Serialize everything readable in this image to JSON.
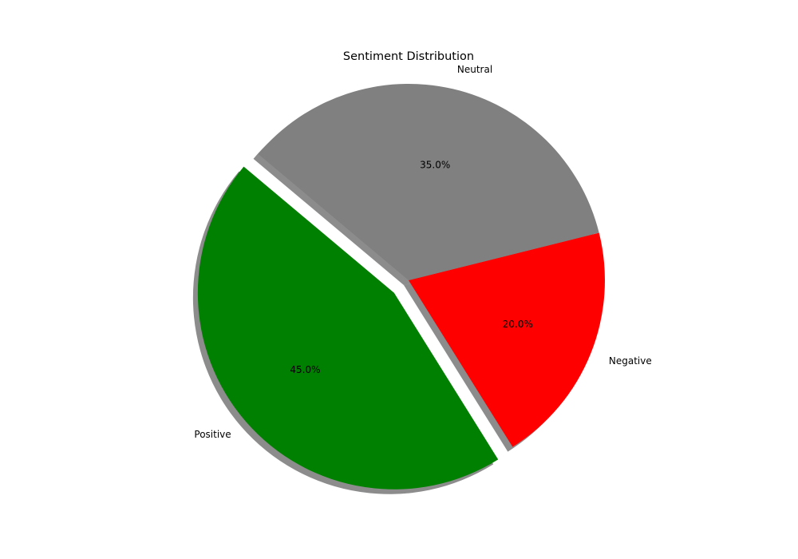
{
  "chart_data": {
    "type": "pie",
    "title": "Sentiment Distribution",
    "labels": [
      "Positive",
      "Negative",
      "Neutral"
    ],
    "values": [
      45.0,
      20.0,
      35.0
    ],
    "value_labels": [
      "45.0%",
      "20.0%",
      "35.0%"
    ],
    "colors": [
      "#008000",
      "#ff0000",
      "#808080"
    ],
    "exploded": [
      "Positive"
    ],
    "shadow": true,
    "legend": "none"
  }
}
